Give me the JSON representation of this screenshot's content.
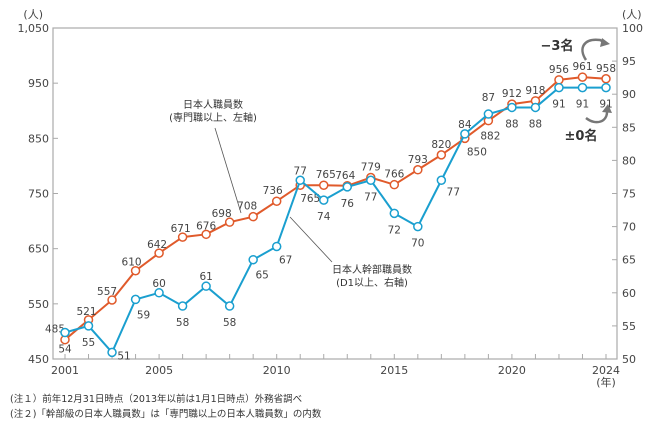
{
  "chart_data": {
    "type": "line",
    "x": [
      2001,
      2002,
      2003,
      2004,
      2005,
      2006,
      2007,
      2008,
      2009,
      2010,
      2011,
      2012,
      2013,
      2014,
      2015,
      2016,
      2017,
      2018,
      2019,
      2020,
      2021,
      2022,
      2023,
      2024
    ],
    "x_tick_labels": [
      "2001",
      "2005",
      "2010",
      "2015",
      "2020",
      "2024"
    ],
    "x_unit": "(年)",
    "y_left": {
      "unit": "(人)",
      "ylim": [
        450,
        1050
      ],
      "ticks": [
        "450",
        "550",
        "650",
        "750",
        "850",
        "950",
        "1,050"
      ]
    },
    "y_right": {
      "unit": "(人)",
      "ylim": [
        50,
        100
      ],
      "ticks": [
        "50",
        "55",
        "60",
        "65",
        "70",
        "75",
        "80",
        "85",
        "90",
        "95",
        "100"
      ]
    },
    "series": [
      {
        "name": "日本人職員数",
        "sub": "(専門職以上、左軸)",
        "axis": "left",
        "color": "#e05a2b",
        "values": [
          485,
          521,
          557,
          610,
          642,
          671,
          676,
          698,
          708,
          736,
          765,
          765,
          764,
          779,
          766,
          793,
          820,
          850,
          882,
          912,
          918,
          956,
          961,
          958
        ]
      },
      {
        "name": "日本人幹部職員数",
        "sub": "(D1以上、右軸)",
        "axis": "right",
        "color": "#1a9fcf",
        "values": [
          54,
          55,
          51,
          59,
          60,
          58,
          61,
          58,
          65,
          67,
          77,
          74,
          76,
          77,
          72,
          70,
          77,
          84,
          87,
          88,
          88,
          91,
          91,
          91
        ]
      }
    ],
    "annotations": {
      "orange_change": "−3名",
      "blue_change": "±0名"
    }
  },
  "notes": [
    "(注１）前年12月31日時点（2013年以前は1月1日時点）外務省調べ",
    "(注２)「幹部級の日本人職員数」は「専門職以上の日本人職員数」の内数"
  ]
}
